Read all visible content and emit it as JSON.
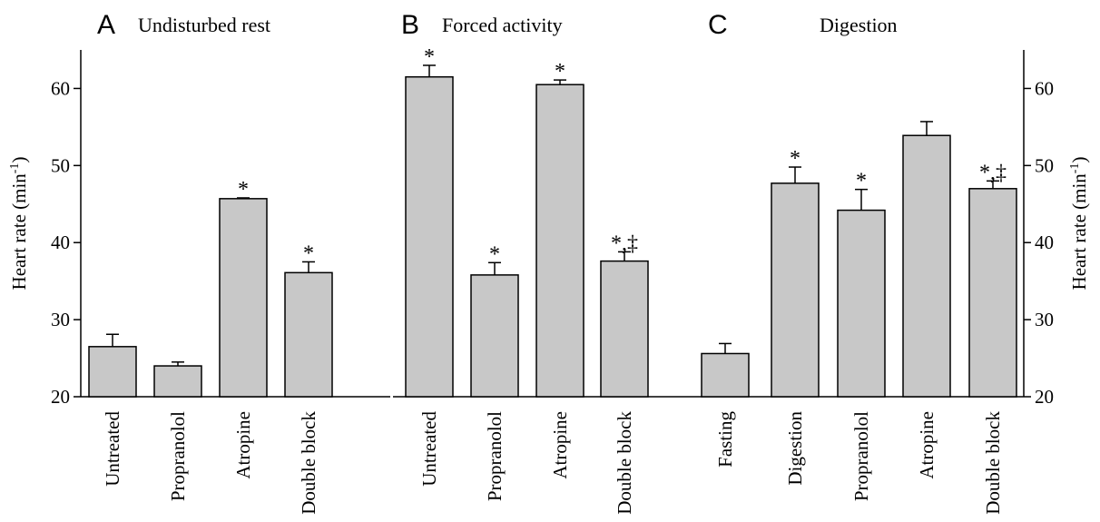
{
  "chart_data": [
    {
      "type": "bar",
      "panel": "A",
      "title": "Undisturbed rest",
      "ylabel": "Heart rate (min-1)",
      "ylim": [
        20,
        65
      ],
      "yticks": [
        "20",
        "30",
        "40",
        "50",
        "60"
      ],
      "categories": [
        "Untreated",
        "Propranolol",
        "Atropine",
        "Double block"
      ],
      "values": [
        26.5,
        24.0,
        45.7,
        36.1
      ],
      "errors": [
        1.6,
        0.5,
        0.1,
        1.4
      ],
      "significance": [
        "",
        "",
        "*",
        "*"
      ],
      "grid": false
    },
    {
      "type": "bar",
      "panel": "B",
      "title": "Forced activity",
      "ylim": [
        20,
        65
      ],
      "categories": [
        "Untreated",
        "Propranolol",
        "Atropine",
        "Double block"
      ],
      "values": [
        61.5,
        35.8,
        60.5,
        37.6
      ],
      "errors": [
        1.5,
        1.6,
        0.6,
        1.2
      ],
      "significance": [
        "*",
        "*",
        "*",
        "*,‡"
      ],
      "grid": false
    },
    {
      "type": "bar",
      "panel": "C",
      "title": "Digestion",
      "ylabel": "Heart rate (min-1)",
      "ylim": [
        20,
        65
      ],
      "yticks": [
        "20",
        "30",
        "40",
        "50",
        "60"
      ],
      "categories": [
        "Fasting",
        "Digestion",
        "Propranolol",
        "Atropine",
        "Double block"
      ],
      "values": [
        25.6,
        47.7,
        44.2,
        53.9,
        47.0
      ],
      "errors": [
        1.3,
        2.1,
        2.7,
        1.8,
        1.0
      ],
      "significance": [
        "",
        "*",
        "*",
        "",
        "*,‡"
      ],
      "grid": false
    }
  ]
}
